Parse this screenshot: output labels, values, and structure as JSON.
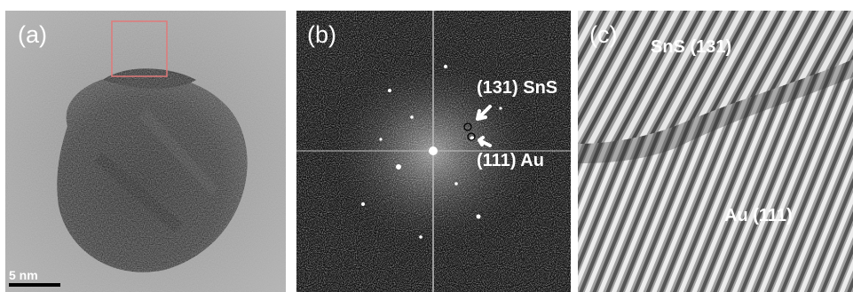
{
  "panels": {
    "a": {
      "label": "(a)",
      "scale_bar": "5 nm"
    },
    "b": {
      "label": "(b)",
      "annotation_top": "(131) SnS",
      "annotation_bottom": "(111) Au"
    },
    "c": {
      "label": "(c)",
      "annotation_top": "SnS (131)",
      "annotation_bottom": "Au (111)"
    }
  },
  "colors": {
    "inset_box": "#e07a7a",
    "label_text": "#ffffff"
  }
}
